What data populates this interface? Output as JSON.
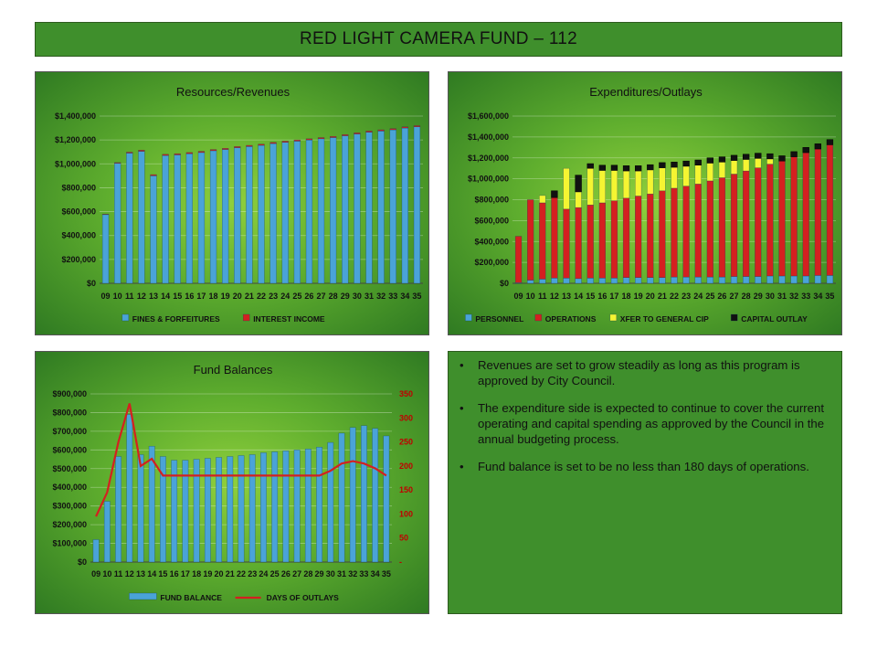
{
  "page_title": "RED LIGHT CAMERA FUND – 112",
  "colors": {
    "fines": "#4aa3d8",
    "interest": "#d42020",
    "personnel": "#4aa3d8",
    "operations": "#d42020",
    "xfer": "#f5f532",
    "capital": "#111111",
    "fund_balance": "#4aa3d8",
    "days": "#d42020"
  },
  "bullets": [
    "Revenues are set to grow steadily as long as this program is approved by City Council.",
    "The expenditure side is expected to continue to cover the current operating and capital spending as approved by the Council in the annual budgeting process.",
    "Fund balance is set to be no less than 180 days of operations."
  ],
  "bullet_glyph": "•",
  "chart_data": [
    {
      "id": "revenues",
      "type": "bar",
      "title": "Resources/Revenues",
      "categories": [
        "09",
        "10",
        "11",
        "12",
        "13",
        "14",
        "15",
        "16",
        "17",
        "18",
        "19",
        "20",
        "21",
        "22",
        "23",
        "24",
        "25",
        "26",
        "27",
        "28",
        "29",
        "30",
        "31",
        "32",
        "33",
        "34",
        "35"
      ],
      "ylim": [
        0,
        1400000
      ],
      "yticks": [
        "$0",
        "$200,000",
        "$400,000",
        "$600,000",
        "$800,000",
        "$1,000,000",
        "$1,200,000",
        "$1,400,000"
      ],
      "stacked": true,
      "series": [
        {
          "name": "FINES & FORFEITURES",
          "values": [
            575000,
            1005000,
            1090000,
            1105000,
            900000,
            1070000,
            1075000,
            1085000,
            1095000,
            1110000,
            1120000,
            1135000,
            1145000,
            1155000,
            1170000,
            1180000,
            1190000,
            1200000,
            1210000,
            1220000,
            1235000,
            1250000,
            1265000,
            1275000,
            1285000,
            1300000,
            1310000
          ]
        },
        {
          "name": "INTEREST INCOME",
          "values": [
            4000,
            6000,
            8000,
            10000,
            10000,
            10000,
            10000,
            10000,
            10000,
            10000,
            10000,
            10000,
            10000,
            10000,
            10000,
            10000,
            10000,
            10000,
            10000,
            10000,
            10000,
            10000,
            10000,
            10000,
            10000,
            10000,
            10000
          ]
        }
      ]
    },
    {
      "id": "expenditures",
      "type": "bar",
      "title": "Expenditures/Outlays",
      "categories": [
        "09",
        "10",
        "11",
        "12",
        "13",
        "14",
        "15",
        "16",
        "17",
        "18",
        "19",
        "20",
        "21",
        "22",
        "23",
        "24",
        "25",
        "26",
        "27",
        "28",
        "29",
        "30",
        "31",
        "32",
        "33",
        "34",
        "35"
      ],
      "ylim": [
        0,
        1600000
      ],
      "yticks": [
        "$0",
        "$200,000",
        "$400,000",
        "$600,000",
        "$800,000",
        "$1,000,000",
        "$1,200,000",
        "$1,400,000",
        "$1,600,000"
      ],
      "stacked": true,
      "series": [
        {
          "name": "PERSONNEL",
          "values": [
            5000,
            30000,
            40000,
            50000,
            50000,
            45000,
            50000,
            50000,
            50000,
            55000,
            55000,
            55000,
            55000,
            60000,
            60000,
            60000,
            60000,
            60000,
            65000,
            65000,
            65000,
            70000,
            70000,
            70000,
            70000,
            75000,
            75000
          ]
        },
        {
          "name": "OPERATIONS",
          "values": [
            445000,
            770000,
            730000,
            770000,
            660000,
            680000,
            700000,
            720000,
            740000,
            760000,
            780000,
            800000,
            830000,
            850000,
            870000,
            890000,
            920000,
            950000,
            980000,
            1010000,
            1040000,
            1070000,
            1100000,
            1140000,
            1180000,
            1210000,
            1250000
          ]
        },
        {
          "name": "XFER TO GENERAL CIP",
          "values": [
            0,
            0,
            70000,
            0,
            390000,
            150000,
            350000,
            310000,
            290000,
            260000,
            240000,
            230000,
            220000,
            200000,
            190000,
            180000,
            170000,
            150000,
            130000,
            110000,
            90000,
            50000,
            0,
            0,
            0,
            0,
            0
          ]
        },
        {
          "name": "CAPITAL OUTLAY",
          "values": [
            0,
            0,
            0,
            65000,
            0,
            160000,
            45000,
            50000,
            50000,
            50000,
            50000,
            50000,
            50000,
            50000,
            50000,
            50000,
            50000,
            50000,
            50000,
            50000,
            50000,
            50000,
            50000,
            50000,
            50000,
            50000,
            50000
          ]
        }
      ]
    },
    {
      "id": "fund_balances",
      "type": "bar+line",
      "title": "Fund Balances",
      "categories": [
        "09",
        "10",
        "11",
        "12",
        "13",
        "14",
        "15",
        "16",
        "17",
        "18",
        "19",
        "20",
        "21",
        "22",
        "23",
        "24",
        "25",
        "26",
        "27",
        "28",
        "29",
        "30",
        "31",
        "32",
        "33",
        "34",
        "35"
      ],
      "ylim": [
        0,
        900000
      ],
      "yticks": [
        "$0",
        "$100,000",
        "$200,000",
        "$300,000",
        "$400,000",
        "$500,000",
        "$600,000",
        "$700,000",
        "$800,000",
        "$900,000"
      ],
      "y2lim": [
        0,
        350
      ],
      "y2ticks": [
        "-",
        "50",
        "100",
        "150",
        "200",
        "250",
        "300",
        "350"
      ],
      "series": [
        {
          "name": "FUND BALANCE",
          "axis": "left",
          "values": [
            120000,
            325000,
            565000,
            790000,
            575000,
            620000,
            565000,
            545000,
            545000,
            550000,
            555000,
            560000,
            565000,
            570000,
            575000,
            585000,
            590000,
            595000,
            600000,
            605000,
            615000,
            640000,
            690000,
            720000,
            730000,
            715000,
            675000
          ]
        },
        {
          "name": "DAYS OF OUTLAYS",
          "axis": "right",
          "values": [
            95,
            145,
            250,
            330,
            200,
            215,
            180,
            180,
            180,
            180,
            180,
            180,
            180,
            180,
            180,
            180,
            180,
            180,
            180,
            180,
            180,
            190,
            205,
            210,
            205,
            195,
            180
          ]
        }
      ]
    }
  ]
}
